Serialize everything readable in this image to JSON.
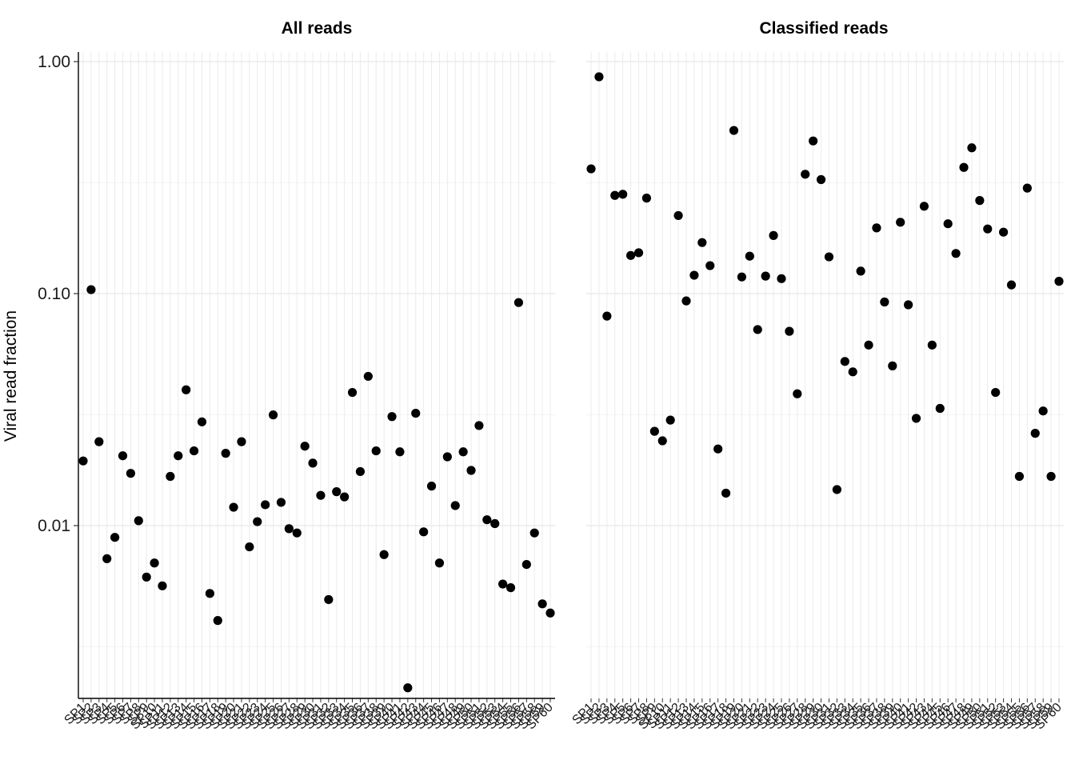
{
  "chart_data": {
    "type": "scatter",
    "ylabel": "Viral read fraction",
    "y_scale": "log10",
    "ylim": [
      0.0018,
      1.1
    ],
    "y_ticks": [
      0.01,
      0.1,
      1.0
    ],
    "y_tick_labels": [
      "0.01",
      "0.10",
      "1.00"
    ],
    "grid": true,
    "point_color": "#000000",
    "panels": [
      {
        "title": "All reads",
        "x_labels": [
          "SP1",
          "SP2",
          "SP3",
          "SP4",
          "SP5",
          "SP6",
          "SP7",
          "SP8",
          "SP9",
          "SP10",
          "SP11",
          "SP12",
          "SP13",
          "SP14",
          "SP15",
          "SP16",
          "SP17",
          "SP18",
          "SP19",
          "SP20",
          "SP21",
          "SP22",
          "SP23",
          "SP24",
          "SP25",
          "SP26",
          "SP27",
          "SP28",
          "SP29",
          "SP30",
          "SP31",
          "SP32",
          "SP33",
          "SP34",
          "SP35",
          "SP36",
          "SP37",
          "SP38",
          "SP39",
          "SP40",
          "SP41",
          "SP42",
          "SP43",
          "SP44",
          "SP45",
          "SP46",
          "SP47",
          "SP48",
          "SP49",
          "SP50",
          "SP51",
          "SP52",
          "SP53",
          "SP54",
          "SP55",
          "SP56",
          "SP57",
          "SP58",
          "SP59",
          "SP60"
        ],
        "values": [
          0.019,
          0.104,
          0.023,
          0.0072,
          0.0089,
          0.02,
          0.0168,
          0.0105,
          0.006,
          0.0069,
          0.0055,
          0.0163,
          0.02,
          0.0385,
          0.021,
          0.028,
          0.0051,
          0.0039,
          0.0205,
          0.012,
          0.023,
          0.0081,
          0.0104,
          0.0123,
          0.03,
          0.0126,
          0.0097,
          0.0093,
          0.022,
          0.0186,
          0.0135,
          0.0048,
          0.014,
          0.0133,
          0.0375,
          0.0171,
          0.044,
          0.021,
          0.0075,
          0.0295,
          0.0208,
          0.002,
          0.0305,
          0.0094,
          0.0148,
          0.0069,
          0.0198,
          0.0122,
          0.0208,
          0.0173,
          0.027,
          0.0106,
          0.0102,
          0.0056,
          0.0054,
          0.0915,
          0.0068,
          0.0093,
          0.0046,
          0.0042
        ]
      },
      {
        "title": "Classified reads",
        "x_labels": [
          "SP1",
          "SP2",
          "SP3",
          "SP4",
          "SP5",
          "SP6",
          "SP7",
          "SP8",
          "SP9",
          "SP10",
          "SP11",
          "SP12",
          "SP13",
          "SP14",
          "SP15",
          "SP16",
          "SP17",
          "SP18",
          "SP19",
          "SP20",
          "SP21",
          "SP22",
          "SP23",
          "SP24",
          "SP25",
          "SP26",
          "SP27",
          "SP28",
          "SP29",
          "SP30",
          "SP31",
          "SP32",
          "SP33",
          "SP34",
          "SP35",
          "SP36",
          "SP37",
          "SP38",
          "SP39",
          "SP40",
          "SP41",
          "SP42",
          "SP43",
          "SP44",
          "SP45",
          "SP46",
          "SP47",
          "SP48",
          "SP49",
          "SP50",
          "SP51",
          "SP52",
          "SP53",
          "SP54",
          "SP55",
          "SP56",
          "SP57",
          "SP58",
          "SP59",
          "SP60"
        ],
        "values": [
          0.345,
          0.86,
          0.08,
          0.265,
          0.268,
          0.146,
          0.15,
          0.258,
          0.0255,
          0.0232,
          0.0285,
          0.217,
          0.093,
          0.12,
          0.166,
          0.132,
          0.0214,
          0.0138,
          0.505,
          0.118,
          0.145,
          0.07,
          0.119,
          0.178,
          0.116,
          0.0688,
          0.037,
          0.327,
          0.455,
          0.31,
          0.144,
          0.0143,
          0.051,
          0.046,
          0.125,
          0.06,
          0.192,
          0.092,
          0.0488,
          0.203,
          0.0895,
          0.029,
          0.238,
          0.06,
          0.032,
          0.2,
          0.149,
          0.35,
          0.425,
          0.252,
          0.19,
          0.0375,
          0.184,
          0.109,
          0.0163,
          0.285,
          0.025,
          0.0312,
          0.0163,
          0.113
        ]
      }
    ]
  }
}
